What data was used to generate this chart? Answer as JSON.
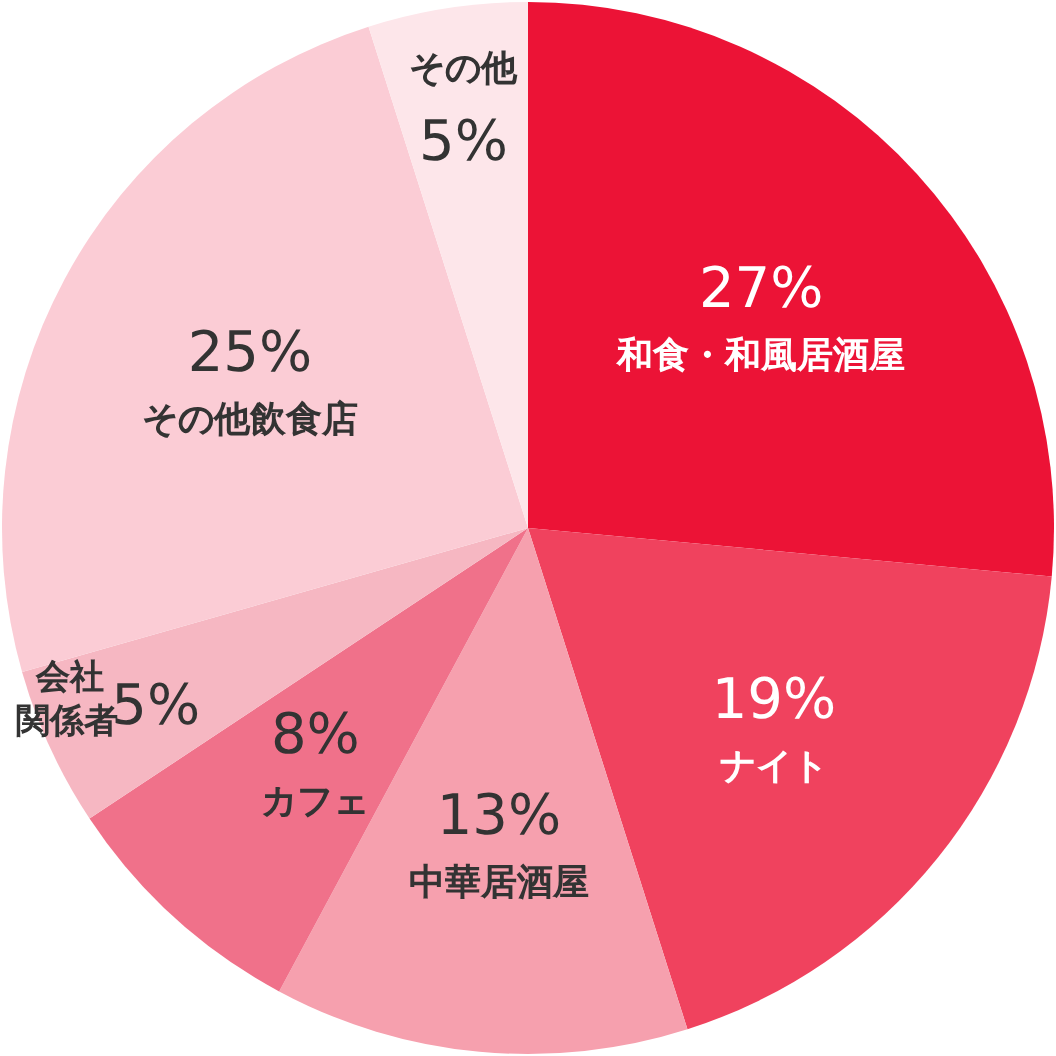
{
  "chart_data": {
    "type": "pie",
    "categories": [
      "和食・和風居酒屋",
      "ナイト",
      "中華居酒屋",
      "カフェ",
      "会社関係者",
      "その他飲食店",
      "その他"
    ],
    "values": [
      27,
      19,
      13,
      8,
      5,
      25,
      5
    ],
    "value_labels": [
      "27%",
      "19%",
      "13%",
      "8%",
      "5%",
      "25%",
      "5%"
    ],
    "colors": [
      "#ec1336",
      "#f0425e",
      "#f6a0ae",
      "#f0718a",
      "#f6b7c2",
      "#fbccd5",
      "#fde6ea"
    ]
  }
}
